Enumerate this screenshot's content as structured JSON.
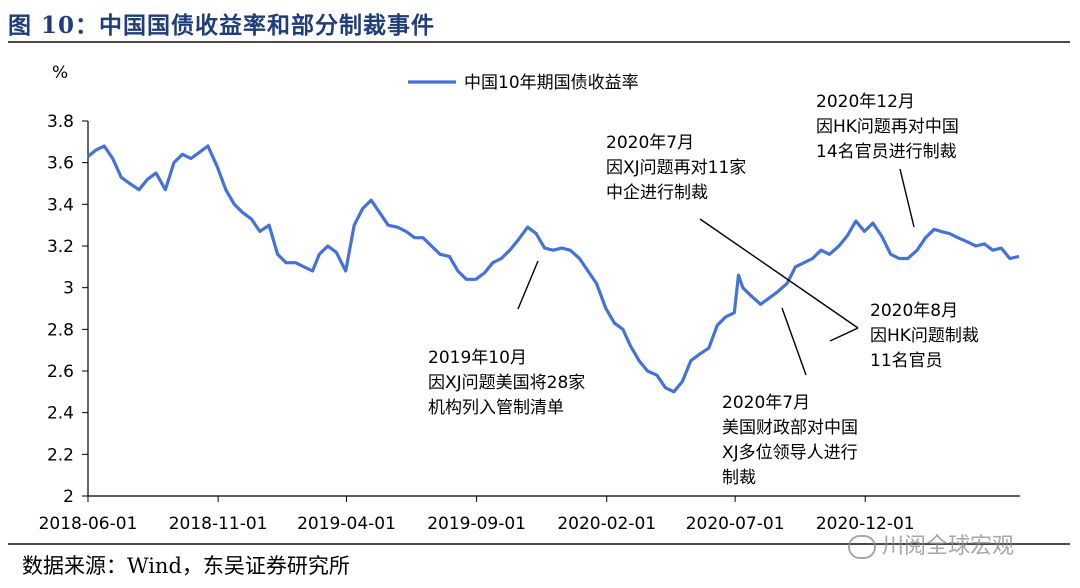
{
  "figure_title": "图 10：中国国债收益率和部分制裁事件",
  "source": "数据来源：Wind，东吴证券研究所",
  "watermark": "川阅全球宏观",
  "chart_data": {
    "type": "line",
    "unit_label": "%",
    "ylim": [
      2,
      3.8
    ],
    "yticks": [
      "3.8",
      "3.6",
      "3.4",
      "3.2",
      "3",
      "2.8",
      "2.6",
      "2.4",
      "2.2",
      "2"
    ],
    "ytick_values": [
      3.8,
      3.6,
      3.4,
      3.2,
      3.0,
      2.8,
      2.6,
      2.4,
      2.2,
      2.0
    ],
    "x_start": "2018-06-01",
    "x_end": "2021-06-01",
    "xticks": [
      "2018-06-01",
      "2018-11-01",
      "2019-04-01",
      "2019-09-01",
      "2020-02-01",
      "2020-07-01",
      "2020-12-01"
    ],
    "legend_position": "top-center",
    "line_color": "#4472d9",
    "series": [
      {
        "name": "中国10年期国债收益率",
        "points": [
          [
            "2018-06-01",
            3.63
          ],
          [
            "2018-06-10",
            3.66
          ],
          [
            "2018-06-20",
            3.68
          ],
          [
            "2018-06-30",
            3.62
          ],
          [
            "2018-07-10",
            3.53
          ],
          [
            "2018-07-20",
            3.5
          ],
          [
            "2018-07-31",
            3.47
          ],
          [
            "2018-08-10",
            3.52
          ],
          [
            "2018-08-20",
            3.55
          ],
          [
            "2018-08-31",
            3.47
          ],
          [
            "2018-09-10",
            3.6
          ],
          [
            "2018-09-20",
            3.64
          ],
          [
            "2018-09-30",
            3.62
          ],
          [
            "2018-10-10",
            3.65
          ],
          [
            "2018-10-20",
            3.68
          ],
          [
            "2018-10-31",
            3.58
          ],
          [
            "2018-11-10",
            3.47
          ],
          [
            "2018-11-20",
            3.4
          ],
          [
            "2018-11-30",
            3.36
          ],
          [
            "2018-12-10",
            3.33
          ],
          [
            "2018-12-20",
            3.27
          ],
          [
            "2018-12-31",
            3.3
          ],
          [
            "2019-01-10",
            3.16
          ],
          [
            "2019-01-20",
            3.12
          ],
          [
            "2019-01-31",
            3.12
          ],
          [
            "2019-02-10",
            3.1
          ],
          [
            "2019-02-20",
            3.08
          ],
          [
            "2019-02-28",
            3.16
          ],
          [
            "2019-03-10",
            3.2
          ],
          [
            "2019-03-20",
            3.17
          ],
          [
            "2019-03-31",
            3.08
          ],
          [
            "2019-04-10",
            3.3
          ],
          [
            "2019-04-20",
            3.38
          ],
          [
            "2019-04-30",
            3.42
          ],
          [
            "2019-05-10",
            3.36
          ],
          [
            "2019-05-20",
            3.3
          ],
          [
            "2019-05-31",
            3.29
          ],
          [
            "2019-06-10",
            3.27
          ],
          [
            "2019-06-20",
            3.24
          ],
          [
            "2019-06-30",
            3.24
          ],
          [
            "2019-07-10",
            3.2
          ],
          [
            "2019-07-20",
            3.16
          ],
          [
            "2019-07-31",
            3.15
          ],
          [
            "2019-08-10",
            3.08
          ],
          [
            "2019-08-20",
            3.04
          ],
          [
            "2019-08-31",
            3.04
          ],
          [
            "2019-09-10",
            3.07
          ],
          [
            "2019-09-20",
            3.12
          ],
          [
            "2019-09-30",
            3.14
          ],
          [
            "2019-10-10",
            3.18
          ],
          [
            "2019-10-20",
            3.23
          ],
          [
            "2019-10-31",
            3.29
          ],
          [
            "2019-11-10",
            3.26
          ],
          [
            "2019-11-20",
            3.19
          ],
          [
            "2019-11-30",
            3.18
          ],
          [
            "2019-12-10",
            3.19
          ],
          [
            "2019-12-20",
            3.18
          ],
          [
            "2019-12-31",
            3.14
          ],
          [
            "2020-01-10",
            3.08
          ],
          [
            "2020-01-20",
            3.02
          ],
          [
            "2020-01-31",
            2.9
          ],
          [
            "2020-02-10",
            2.83
          ],
          [
            "2020-02-20",
            2.8
          ],
          [
            "2020-02-29",
            2.72
          ],
          [
            "2020-03-10",
            2.65
          ],
          [
            "2020-03-20",
            2.6
          ],
          [
            "2020-03-31",
            2.58
          ],
          [
            "2020-04-10",
            2.52
          ],
          [
            "2020-04-20",
            2.5
          ],
          [
            "2020-04-30",
            2.55
          ],
          [
            "2020-05-10",
            2.65
          ],
          [
            "2020-05-20",
            2.68
          ],
          [
            "2020-05-31",
            2.71
          ],
          [
            "2020-06-10",
            2.82
          ],
          [
            "2020-06-20",
            2.86
          ],
          [
            "2020-06-30",
            2.88
          ],
          [
            "2020-07-05",
            3.06
          ],
          [
            "2020-07-10",
            3.0
          ],
          [
            "2020-07-20",
            2.96
          ],
          [
            "2020-07-31",
            2.92
          ],
          [
            "2020-08-10",
            2.95
          ],
          [
            "2020-08-20",
            2.98
          ],
          [
            "2020-08-31",
            3.02
          ],
          [
            "2020-09-10",
            3.1
          ],
          [
            "2020-09-20",
            3.12
          ],
          [
            "2020-09-30",
            3.14
          ],
          [
            "2020-10-10",
            3.18
          ],
          [
            "2020-10-20",
            3.16
          ],
          [
            "2020-10-31",
            3.2
          ],
          [
            "2020-11-10",
            3.25
          ],
          [
            "2020-11-20",
            3.32
          ],
          [
            "2020-11-30",
            3.27
          ],
          [
            "2020-12-10",
            3.31
          ],
          [
            "2020-12-20",
            3.25
          ],
          [
            "2020-12-31",
            3.16
          ],
          [
            "2021-01-10",
            3.14
          ],
          [
            "2021-01-20",
            3.14
          ],
          [
            "2021-01-31",
            3.18
          ],
          [
            "2021-02-10",
            3.24
          ],
          [
            "2021-02-20",
            3.28
          ],
          [
            "2021-02-28",
            3.27
          ],
          [
            "2021-03-10",
            3.26
          ],
          [
            "2021-03-20",
            3.24
          ],
          [
            "2021-03-31",
            3.22
          ],
          [
            "2021-04-10",
            3.2
          ],
          [
            "2021-04-20",
            3.21
          ],
          [
            "2021-04-30",
            3.18
          ],
          [
            "2021-05-10",
            3.19
          ],
          [
            "2021-05-20",
            3.14
          ],
          [
            "2021-05-31",
            3.15
          ]
        ]
      }
    ],
    "annotations": [
      {
        "id": "a2019oct",
        "lines": [
          "2019年10月",
          "因XJ问题美国将28家",
          "机构列入管制清单"
        ]
      },
      {
        "id": "a2020jul_a",
        "lines": [
          "2020年7月",
          "因XJ问题再对11家",
          "中企进行制裁"
        ]
      },
      {
        "id": "a2020jul_b",
        "lines": [
          "2020年7月",
          "美国财政部对中国",
          "XJ多位领导人进行",
          "制裁"
        ]
      },
      {
        "id": "a2020aug",
        "lines": [
          "2020年8月",
          "因HK问题制裁",
          "11名官员"
        ]
      },
      {
        "id": "a2020dec",
        "lines": [
          "2020年12月",
          "因HK问题再对中国",
          "14名官员进行制裁"
        ]
      }
    ]
  }
}
